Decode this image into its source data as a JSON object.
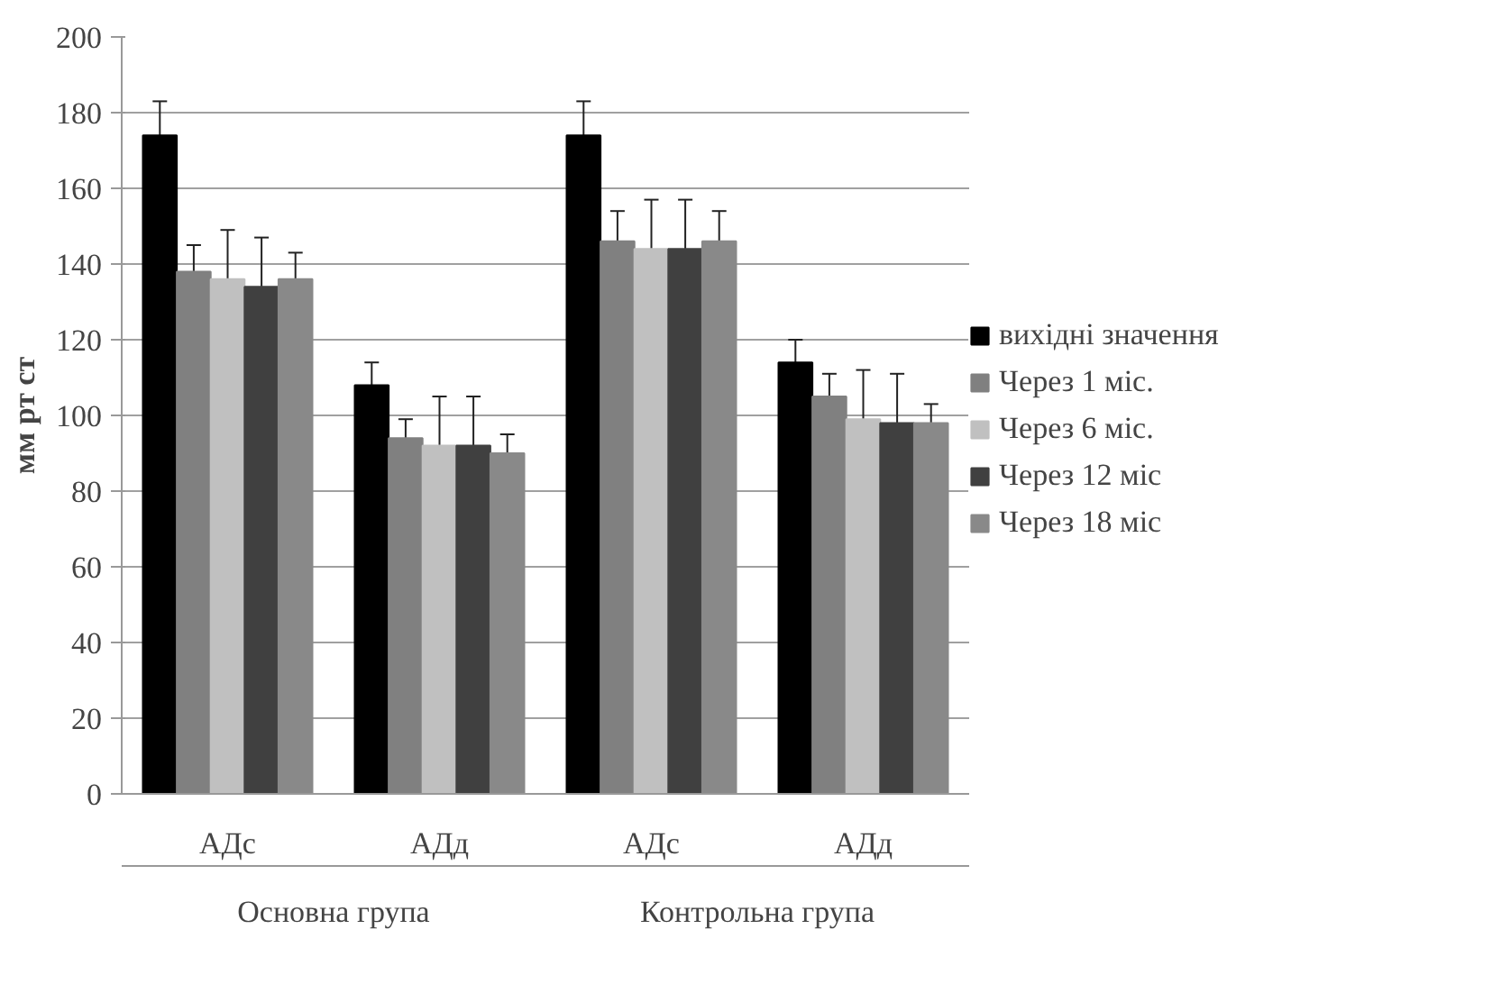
{
  "chart_data": {
    "type": "bar",
    "ylabel": "мм рт ст",
    "categories": [
      "АДс",
      "АДд",
      "АДс",
      "АДд"
    ],
    "annotations": [
      "Основна група",
      "Контрольна група"
    ],
    "series": [
      {
        "name": "вихідні значення",
        "color": "#000000",
        "values": [
          174,
          108,
          174,
          114
        ],
        "errors": [
          9,
          6,
          9,
          6
        ]
      },
      {
        "name": "Через 1 міс.",
        "color": "#808080",
        "values": [
          138,
          94,
          146,
          105
        ],
        "errors": [
          7,
          5,
          8,
          6
        ]
      },
      {
        "name": "Через 6 міс.",
        "color": "#c0c0c0",
        "values": [
          136,
          92,
          144,
          99
        ],
        "errors": [
          13,
          13,
          13,
          13
        ]
      },
      {
        "name": "Через 12 міс",
        "color": "#404040",
        "values": [
          134,
          92,
          144,
          98
        ],
        "errors": [
          13,
          13,
          13,
          13
        ]
      },
      {
        "name": "Через 18 міс",
        "color": "#898989",
        "values": [
          136,
          90,
          146,
          98
        ],
        "errors": [
          7,
          5,
          8,
          5
        ]
      }
    ],
    "ylim": [
      0,
      200
    ],
    "yticks": [
      0,
      20,
      40,
      60,
      80,
      100,
      120,
      140,
      160,
      180,
      200
    ],
    "grid": "y",
    "legend": "right"
  }
}
